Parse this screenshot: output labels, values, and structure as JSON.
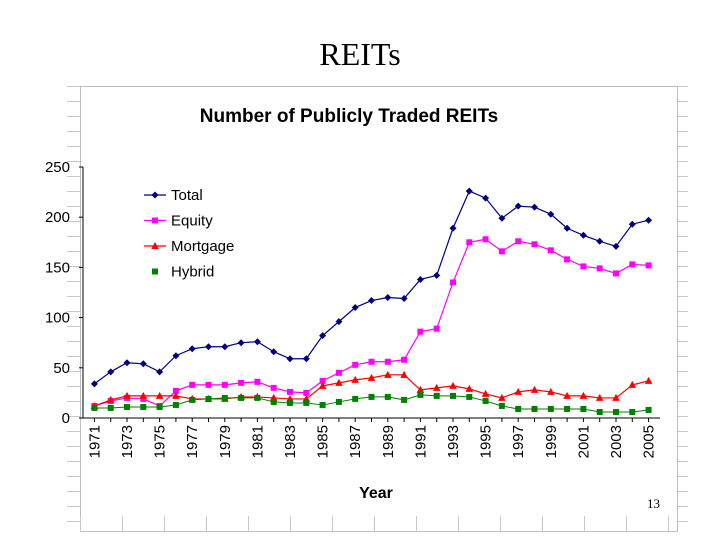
{
  "slide": {
    "title": "REITs",
    "page_number": "13"
  },
  "chart_data": {
    "type": "line",
    "title": "Number of Publicly Traded REITs",
    "xlabel": "Year",
    "ylabel": "",
    "ylim": [
      0,
      250
    ],
    "yticks": [
      0,
      50,
      100,
      150,
      200,
      250
    ],
    "x": [
      1971,
      1972,
      1973,
      1974,
      1975,
      1976,
      1977,
      1978,
      1979,
      1980,
      1981,
      1982,
      1983,
      1984,
      1985,
      1986,
      1987,
      1988,
      1989,
      1990,
      1991,
      1992,
      1993,
      1994,
      1995,
      1996,
      1997,
      1998,
      1999,
      2000,
      2001,
      2002,
      2003,
      2004,
      2005
    ],
    "xtick_labels": [
      "1971",
      "1973",
      "1975",
      "1977",
      "1979",
      "1981",
      "1983",
      "1985",
      "1987",
      "1989",
      "1991",
      "1993",
      "1995",
      "1997",
      "1999",
      "2001",
      "2003",
      "2005"
    ],
    "legend_position": "top-left",
    "series": [
      {
        "name": "Total",
        "color": "#000080",
        "marker": "diamond",
        "values": [
          34,
          46,
          55,
          54,
          46,
          62,
          69,
          71,
          71,
          75,
          76,
          66,
          59,
          59,
          82,
          96,
          110,
          117,
          120,
          119,
          138,
          142,
          189,
          226,
          219,
          199,
          211,
          210,
          203,
          189,
          182,
          176,
          171,
          193,
          197
        ]
      },
      {
        "name": "Equity",
        "color": "#ff00ff",
        "marker": "square",
        "values": [
          12,
          17,
          20,
          19,
          12,
          27,
          33,
          33,
          33,
          35,
          36,
          30,
          26,
          25,
          37,
          45,
          53,
          56,
          56,
          58,
          86,
          89,
          135,
          175,
          178,
          166,
          176,
          173,
          167,
          158,
          151,
          149,
          144,
          153,
          152
        ]
      },
      {
        "name": "Mortgage",
        "color": "#ff0000",
        "marker": "triangle",
        "values": [
          12,
          18,
          22,
          22,
          22,
          22,
          19,
          19,
          19,
          21,
          21,
          20,
          19,
          19,
          32,
          35,
          38,
          40,
          43,
          43,
          28,
          30,
          32,
          29,
          24,
          20,
          26,
          28,
          26,
          22,
          22,
          20,
          20,
          33,
          37
        ]
      },
      {
        "name": "Hybrid",
        "color": "#008000",
        "marker": "square",
        "values": [
          10,
          10,
          11,
          11,
          11,
          13,
          18,
          19,
          20,
          20,
          20,
          16,
          15,
          15,
          13,
          16,
          19,
          21,
          21,
          18,
          23,
          22,
          22,
          21,
          17,
          12,
          9,
          9,
          9,
          9,
          9,
          6,
          6,
          6,
          8
        ]
      }
    ]
  }
}
